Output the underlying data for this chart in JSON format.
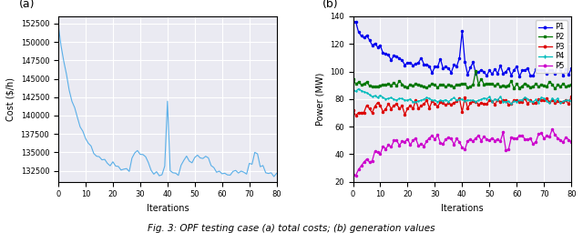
{
  "fig_label_a": "(a)",
  "fig_label_b": "(b)",
  "xlabel_a": "Iterations",
  "ylabel_a": "Cost ($/h)",
  "xlabel_b": "Iterations",
  "ylabel_b": "Power (MW)",
  "caption": "Fig. 3: OPF testing case (a) total costs; (b) generation values",
  "ax_a": {
    "xlim": [
      0,
      80
    ],
    "ylim": [
      131000,
      153500
    ],
    "xticks": [
      0,
      10,
      20,
      30,
      40,
      50,
      60,
      70,
      80
    ],
    "yticks": [
      132500,
      135000,
      137500,
      140000,
      142500,
      145000,
      147500,
      150000,
      152500
    ],
    "color": "#5aafe8",
    "n_points": 81
  },
  "ax_b": {
    "xlim": [
      0,
      80
    ],
    "ylim": [
      20,
      140
    ],
    "xticks": [
      0,
      10,
      20,
      30,
      40,
      50,
      60,
      70,
      80
    ],
    "yticks": [
      20,
      40,
      60,
      80,
      100,
      120,
      140
    ],
    "colors": {
      "P1": "#0000ee",
      "P2": "#007700",
      "P3": "#dd0000",
      "P4": "#00bbbb",
      "P5": "#cc00cc"
    }
  },
  "background_color": "#eaeaf2",
  "grid_color": "#ffffff",
  "label_fontsize": 7,
  "tick_fontsize": 6,
  "legend_fontsize": 6
}
